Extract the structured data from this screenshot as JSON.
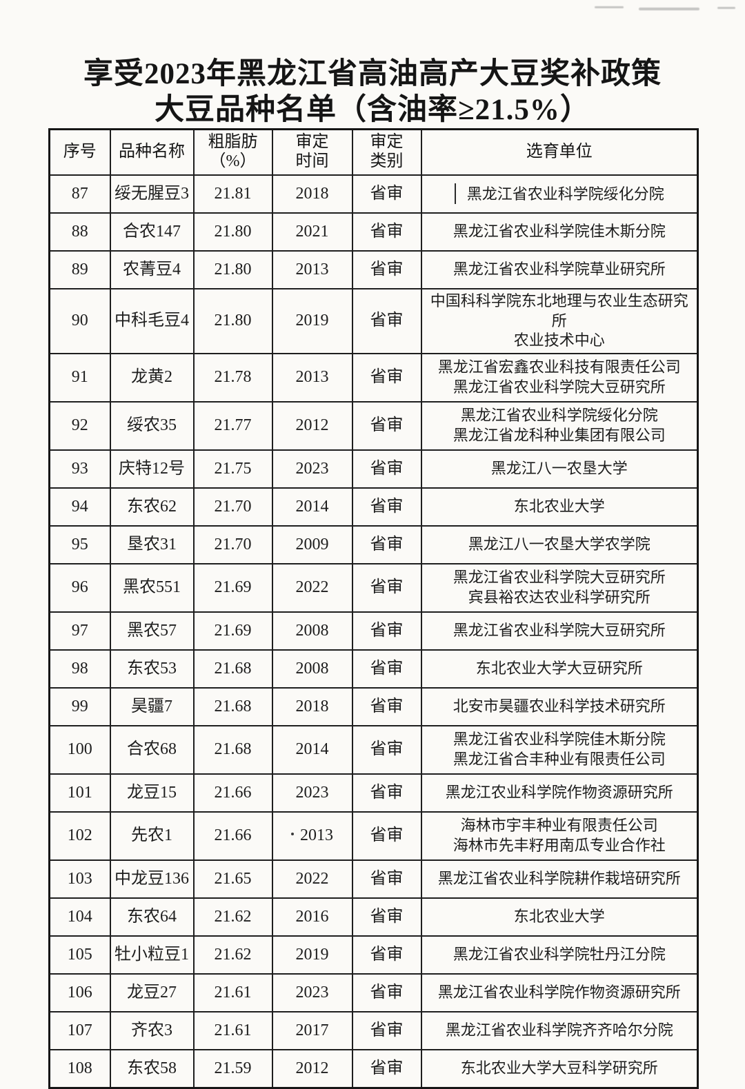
{
  "page": {
    "title_line1": "享受2023年黑龙江省高油高产大豆奖补政策",
    "title_line2": "大豆品种名单（含油率≥21.5%）"
  },
  "table": {
    "columns": [
      {
        "key": "serial",
        "label": "序号"
      },
      {
        "key": "variety",
        "label": "品种名称"
      },
      {
        "key": "fat",
        "label": "粗脂肪\n（%）"
      },
      {
        "key": "year",
        "label": "审定\n时间"
      },
      {
        "key": "category",
        "label": "审定\n类别"
      },
      {
        "key": "unit",
        "label": "选育单位"
      }
    ],
    "rows": [
      {
        "serial": "87",
        "variety": "绥无腥豆3",
        "fat": "21.81",
        "year": "2018",
        "category": "省审",
        "unit": "黑龙江省农业科学院绥化分院",
        "unit_prefix_mark": "vertical-bar"
      },
      {
        "serial": "88",
        "variety": "合农147",
        "fat": "21.80",
        "year": "2021",
        "category": "省审",
        "unit": "黑龙江省农业科学院佳木斯分院"
      },
      {
        "serial": "89",
        "variety": "农菁豆4",
        "fat": "21.80",
        "year": "2013",
        "category": "省审",
        "unit": "黑龙江省农业科学院草业研究所"
      },
      {
        "serial": "90",
        "variety": "中科毛豆4",
        "fat": "21.80",
        "year": "2019",
        "category": "省审",
        "unit": "中国科科学院东北地理与农业生态研究所\n农业技术中心"
      },
      {
        "serial": "91",
        "variety": "龙黄2",
        "fat": "21.78",
        "year": "2013",
        "category": "省审",
        "unit": "黑龙江省宏鑫农业科技有限责任公司\n黑龙江省农业科学院大豆研究所"
      },
      {
        "serial": "92",
        "variety": "绥农35",
        "fat": "21.77",
        "year": "2012",
        "category": "省审",
        "unit": "黑龙江省农业科学院绥化分院\n黑龙江省龙科种业集团有限公司"
      },
      {
        "serial": "93",
        "variety": "庆特12号",
        "fat": "21.75",
        "year": "2023",
        "category": "省审",
        "unit": "黑龙江八一农垦大学"
      },
      {
        "serial": "94",
        "variety": "东农62",
        "fat": "21.70",
        "year": "2014",
        "category": "省审",
        "unit": "东北农业大学"
      },
      {
        "serial": "95",
        "variety": "垦农31",
        "fat": "21.70",
        "year": "2009",
        "category": "省审",
        "unit": "黑龙江八一农垦大学农学院"
      },
      {
        "serial": "96",
        "variety": "黑农551",
        "fat": "21.69",
        "year": "2022",
        "category": "省审",
        "unit": "黑龙江省农业科学院大豆研究所\n宾县裕农达农业科学研究所"
      },
      {
        "serial": "97",
        "variety": "黑农57",
        "fat": "21.69",
        "year": "2008",
        "category": "省审",
        "unit": "黑龙江省农业科学院大豆研究所"
      },
      {
        "serial": "98",
        "variety": "东农53",
        "fat": "21.68",
        "year": "2008",
        "category": "省审",
        "unit": "东北农业大学大豆研究所"
      },
      {
        "serial": "99",
        "variety": "昊疆7",
        "fat": "21.68",
        "year": "2018",
        "category": "省审",
        "unit": "北安市昊疆农业科学技术研究所"
      },
      {
        "serial": "100",
        "variety": "合农68",
        "fat": "21.68",
        "year": "2014",
        "category": "省审",
        "unit": "黑龙江省农业科学院佳木斯分院\n黑龙江省合丰种业有限责任公司"
      },
      {
        "serial": "101",
        "variety": "龙豆15",
        "fat": "21.66",
        "year": "2023",
        "category": "省审",
        "unit": "黑龙江农业科学院作物资源研究所"
      },
      {
        "serial": "102",
        "variety": "先农1",
        "fat": "21.66",
        "year": "2013",
        "category": "省审",
        "unit": "海林市宇丰种业有限责任公司\n海林市先丰籽用南瓜专业合作社",
        "year_prefix_mark": "dot"
      },
      {
        "serial": "103",
        "variety": "中龙豆136",
        "fat": "21.65",
        "year": "2022",
        "category": "省审",
        "unit": "黑龙江省农业科学院耕作栽培研究所"
      },
      {
        "serial": "104",
        "variety": "东农64",
        "fat": "21.62",
        "year": "2016",
        "category": "省审",
        "unit": "东北农业大学"
      },
      {
        "serial": "105",
        "variety": "牡小粒豆1",
        "fat": "21.62",
        "year": "2019",
        "category": "省审",
        "unit": "黑龙江省农业科学院牡丹江分院"
      },
      {
        "serial": "106",
        "variety": "龙豆27",
        "fat": "21.61",
        "year": "2023",
        "category": "省审",
        "unit": "黑龙江省农业科学院作物资源研究所"
      },
      {
        "serial": "107",
        "variety": "齐农3",
        "fat": "21.61",
        "year": "2017",
        "category": "省审",
        "unit": "黑龙江省农业科学院齐齐哈尔分院"
      },
      {
        "serial": "108",
        "variety": "东农58",
        "fat": "21.59",
        "year": "2012",
        "category": "省审",
        "unit": "东北农业大学大豆科学研究所"
      }
    ]
  }
}
